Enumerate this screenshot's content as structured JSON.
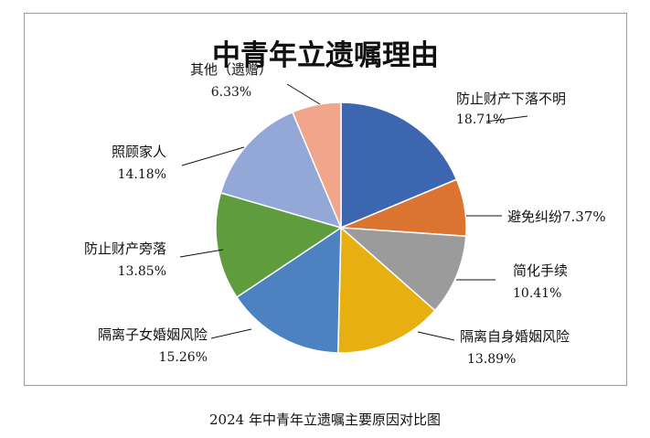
{
  "chart_data": {
    "type": "pie",
    "title": "中青年立遗嘱理由",
    "slices": [
      {
        "label": "防止财产下落不明",
        "value_label": "18.71%",
        "value": 18.71,
        "color": "#3D66B0"
      },
      {
        "label": "避免纠纷",
        "value_label": "7.37%",
        "value": 7.37,
        "color": "#DA7430"
      },
      {
        "label": "简化手续",
        "value_label": "10.41%",
        "value": 10.41,
        "color": "#9B9B9B"
      },
      {
        "label": "隔离自身婚姻风险",
        "value_label": "13.89%",
        "value": 13.89,
        "color": "#E7AF0F"
      },
      {
        "label": "隔离子女婚姻风险",
        "value_label": "15.26%",
        "value": 15.26,
        "color": "#4C82C2"
      },
      {
        "label": "防止财产旁落",
        "value_label": "13.85%",
        "value": 13.85,
        "color": "#5E9C3E"
      },
      {
        "label": "照顾家人",
        "value_label": "14.18%",
        "value": 14.18,
        "color": "#94A8D8"
      },
      {
        "label": "其他（遗赠）",
        "value_label": "6.33%",
        "value": 6.33,
        "color": "#F1A58B"
      }
    ]
  },
  "caption": "2024 年中青年立遗嘱主要原因对比图"
}
